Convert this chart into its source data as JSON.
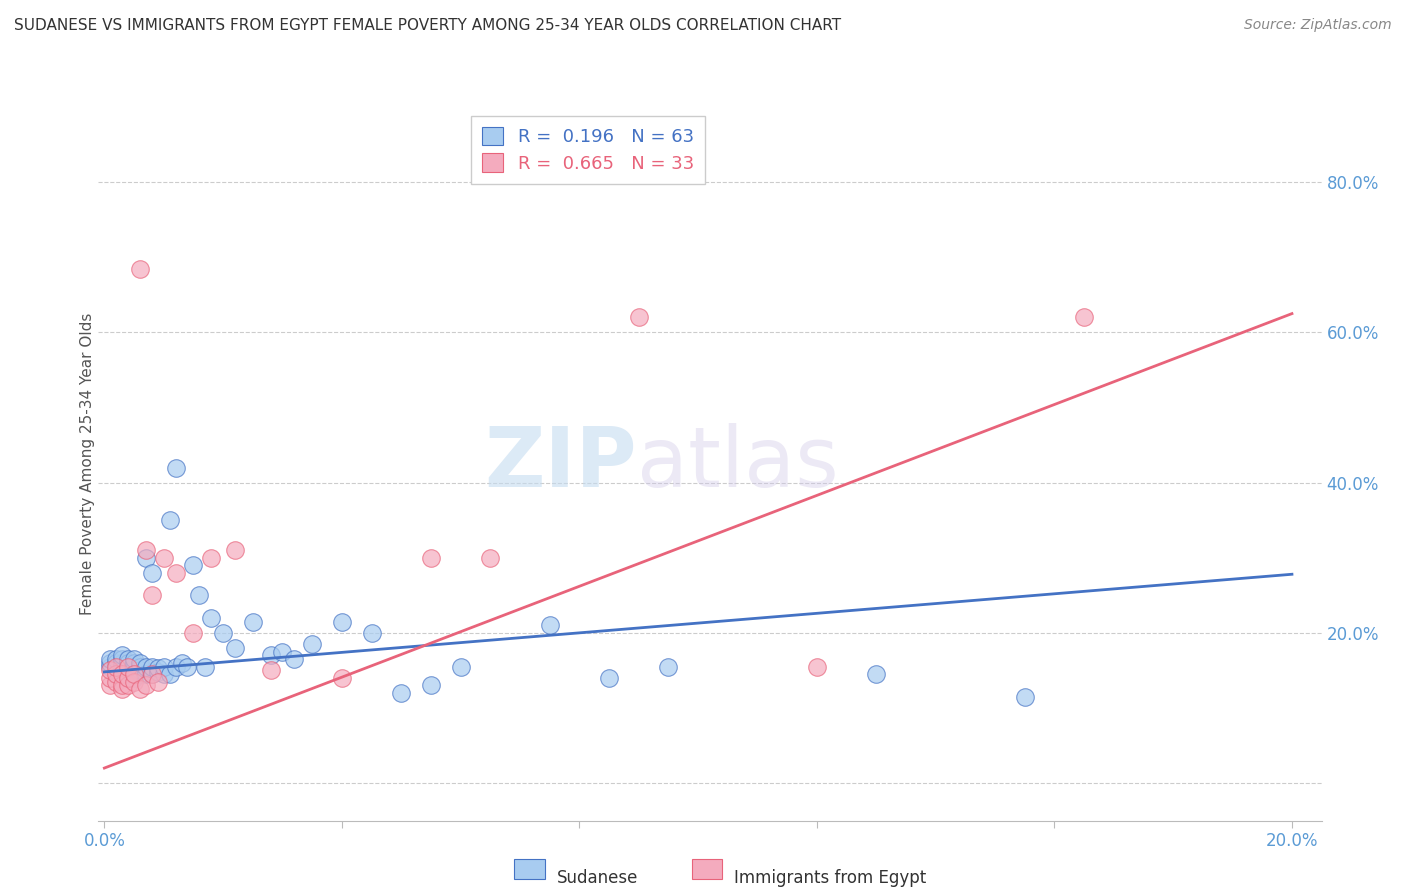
{
  "title": "SUDANESE VS IMMIGRANTS FROM EGYPT FEMALE POVERTY AMONG 25-34 YEAR OLDS CORRELATION CHART",
  "source": "Source: ZipAtlas.com",
  "ylabel": "Female Poverty Among 25-34 Year Olds",
  "xlim": [
    -0.001,
    0.205
  ],
  "ylim": [
    -0.05,
    0.9
  ],
  "r_sudanese": 0.196,
  "n_sudanese": 63,
  "r_egypt": 0.665,
  "n_egypt": 33,
  "color_sudanese": "#A8CCF0",
  "color_egypt": "#F4ABBE",
  "line_color_sudanese": "#4472C4",
  "line_color_egypt": "#E8637A",
  "background_color": "#FFFFFF",
  "watermark_zip": "ZIP",
  "watermark_atlas": "atlas",
  "tick_color": "#5B9BD5",
  "sudanese_x": [
    0.001,
    0.001,
    0.001,
    0.002,
    0.002,
    0.002,
    0.002,
    0.003,
    0.003,
    0.003,
    0.003,
    0.003,
    0.004,
    0.004,
    0.004,
    0.004,
    0.004,
    0.005,
    0.005,
    0.005,
    0.005,
    0.005,
    0.006,
    0.006,
    0.006,
    0.006,
    0.007,
    0.007,
    0.007,
    0.008,
    0.008,
    0.008,
    0.009,
    0.009,
    0.01,
    0.01,
    0.011,
    0.011,
    0.012,
    0.012,
    0.013,
    0.014,
    0.015,
    0.016,
    0.017,
    0.018,
    0.02,
    0.022,
    0.025,
    0.028,
    0.03,
    0.032,
    0.035,
    0.04,
    0.045,
    0.05,
    0.055,
    0.06,
    0.075,
    0.085,
    0.095,
    0.13,
    0.155
  ],
  "sudanese_y": [
    0.155,
    0.16,
    0.165,
    0.145,
    0.155,
    0.16,
    0.165,
    0.15,
    0.155,
    0.16,
    0.165,
    0.17,
    0.145,
    0.15,
    0.155,
    0.16,
    0.165,
    0.14,
    0.15,
    0.155,
    0.16,
    0.165,
    0.145,
    0.15,
    0.155,
    0.16,
    0.145,
    0.155,
    0.3,
    0.145,
    0.155,
    0.28,
    0.148,
    0.153,
    0.145,
    0.155,
    0.145,
    0.35,
    0.155,
    0.42,
    0.16,
    0.155,
    0.29,
    0.25,
    0.155,
    0.22,
    0.2,
    0.18,
    0.215,
    0.17,
    0.175,
    0.165,
    0.185,
    0.215,
    0.2,
    0.12,
    0.13,
    0.155,
    0.21,
    0.14,
    0.155,
    0.145,
    0.115
  ],
  "egypt_x": [
    0.001,
    0.001,
    0.001,
    0.002,
    0.002,
    0.002,
    0.003,
    0.003,
    0.003,
    0.004,
    0.004,
    0.004,
    0.005,
    0.005,
    0.006,
    0.006,
    0.007,
    0.007,
    0.008,
    0.008,
    0.009,
    0.01,
    0.012,
    0.015,
    0.018,
    0.022,
    0.028,
    0.04,
    0.055,
    0.065,
    0.09,
    0.12,
    0.165
  ],
  "egypt_y": [
    0.13,
    0.14,
    0.15,
    0.135,
    0.145,
    0.155,
    0.125,
    0.13,
    0.145,
    0.13,
    0.14,
    0.155,
    0.135,
    0.145,
    0.125,
    0.685,
    0.13,
    0.31,
    0.145,
    0.25,
    0.135,
    0.3,
    0.28,
    0.2,
    0.3,
    0.31,
    0.15,
    0.14,
    0.3,
    0.3,
    0.62,
    0.155,
    0.62
  ],
  "blue_line_y0": 0.148,
  "blue_line_y1": 0.278,
  "pink_line_y0": 0.02,
  "pink_line_y1": 0.625
}
